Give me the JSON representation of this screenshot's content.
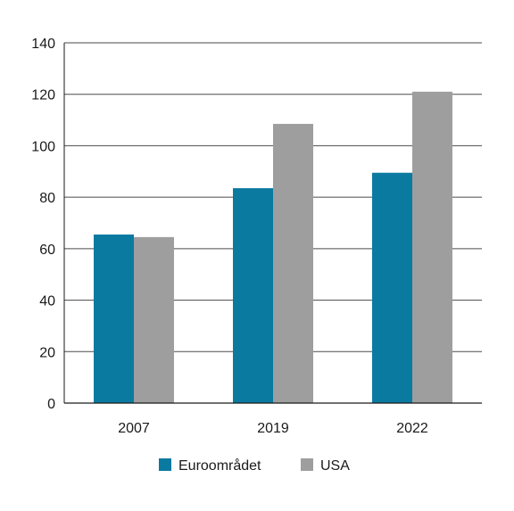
{
  "chart_data": {
    "type": "bar",
    "title": "",
    "xlabel": "",
    "ylabel": "",
    "categories": [
      "2007",
      "2019",
      "2022"
    ],
    "series": [
      {
        "name": "Euroområdet",
        "values": [
          65.5,
          83.5,
          89.5
        ],
        "color": "#0a7aa1"
      },
      {
        "name": "USA",
        "values": [
          64.5,
          108.5,
          121.0
        ],
        "color": "#9e9e9e"
      }
    ],
    "ylim": [
      0,
      140
    ],
    "yticks": [
      0,
      20,
      40,
      60,
      80,
      100,
      120,
      140
    ],
    "ytick_labels": [
      "0",
      "20",
      "40",
      "60",
      "80",
      "100",
      "120",
      "140"
    ],
    "grid": true,
    "legend_position": "bottom"
  }
}
